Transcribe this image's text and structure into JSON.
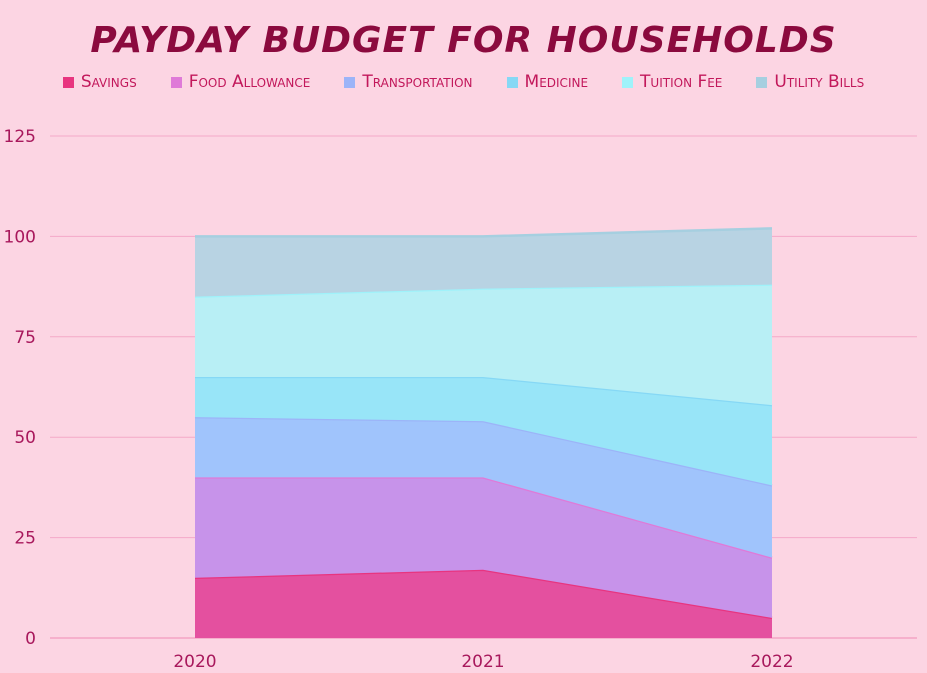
{
  "chart_data": {
    "type": "area",
    "stacked": true,
    "title": "PAYDAY BUDGET FOR HOUSEHOLDS",
    "xlabel": "",
    "ylabel": "",
    "categories": [
      "2020",
      "2021",
      "2022"
    ],
    "ylim": [
      0,
      125
    ],
    "yticks": [
      0,
      25,
      50,
      75,
      100,
      125
    ],
    "grid": true,
    "legend_position": "top",
    "series": [
      {
        "name": "Savings",
        "values": [
          15,
          17,
          5
        ],
        "color": "#e4509f",
        "line": "#e8347f"
      },
      {
        "name": "Food Allowance",
        "values": [
          25,
          23,
          15
        ],
        "color": "#c793ea",
        "line": "#df7ad8"
      },
      {
        "name": "Transportation",
        "values": [
          15,
          14,
          18
        ],
        "color": "#a0c4fc",
        "line": "#9cb4f8"
      },
      {
        "name": "Medicine",
        "values": [
          10,
          11,
          20
        ],
        "color": "#98e5f8",
        "line": "#86d8f5"
      },
      {
        "name": "Tuition Fee",
        "values": [
          20,
          22,
          30
        ],
        "color": "#b8eff5",
        "line": "#9ff2fa"
      },
      {
        "name": "Utility Bills",
        "values": [
          15,
          13,
          14
        ],
        "color": "#b8d3e3",
        "line": "#a6cfe0"
      }
    ]
  }
}
